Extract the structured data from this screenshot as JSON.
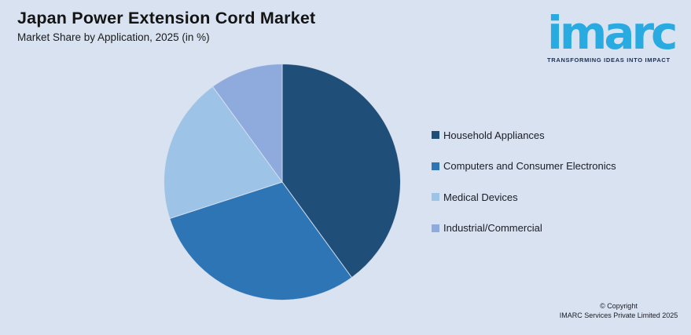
{
  "header": {
    "title": "Japan Power Extension Cord Market",
    "subtitle": "Market Share by Application, 2025 (in %)"
  },
  "logo": {
    "wordmark": "imarc",
    "tagline": "TRANSFORMING IDEAS INTO IMPACT",
    "brand_color": "#29ABE2"
  },
  "chart_data": {
    "type": "pie",
    "title": "Japan Power Extension Cord Market",
    "subtitle": "Market Share by Application, 2025 (in %)",
    "unit": "%",
    "year": "2025",
    "start_angle_deg": 0,
    "direction": "clockwise",
    "legend_position": "right",
    "slices": [
      {
        "label": "Household Appliances",
        "value": 40,
        "color": "#1F4E79"
      },
      {
        "label": "Computers and Consumer Electronics",
        "value": 30,
        "color": "#2E75B6"
      },
      {
        "label": "Medical Devices",
        "value": 20,
        "color": "#9DC3E6"
      },
      {
        "label": "Industrial/Commercial",
        "value": 10,
        "color": "#8FAADC"
      }
    ],
    "background_color": "#D9E2F0"
  },
  "footer": {
    "copyright_line1": "© Copyright",
    "copyright_line2": "IMARC Services Private Limited 2025"
  }
}
